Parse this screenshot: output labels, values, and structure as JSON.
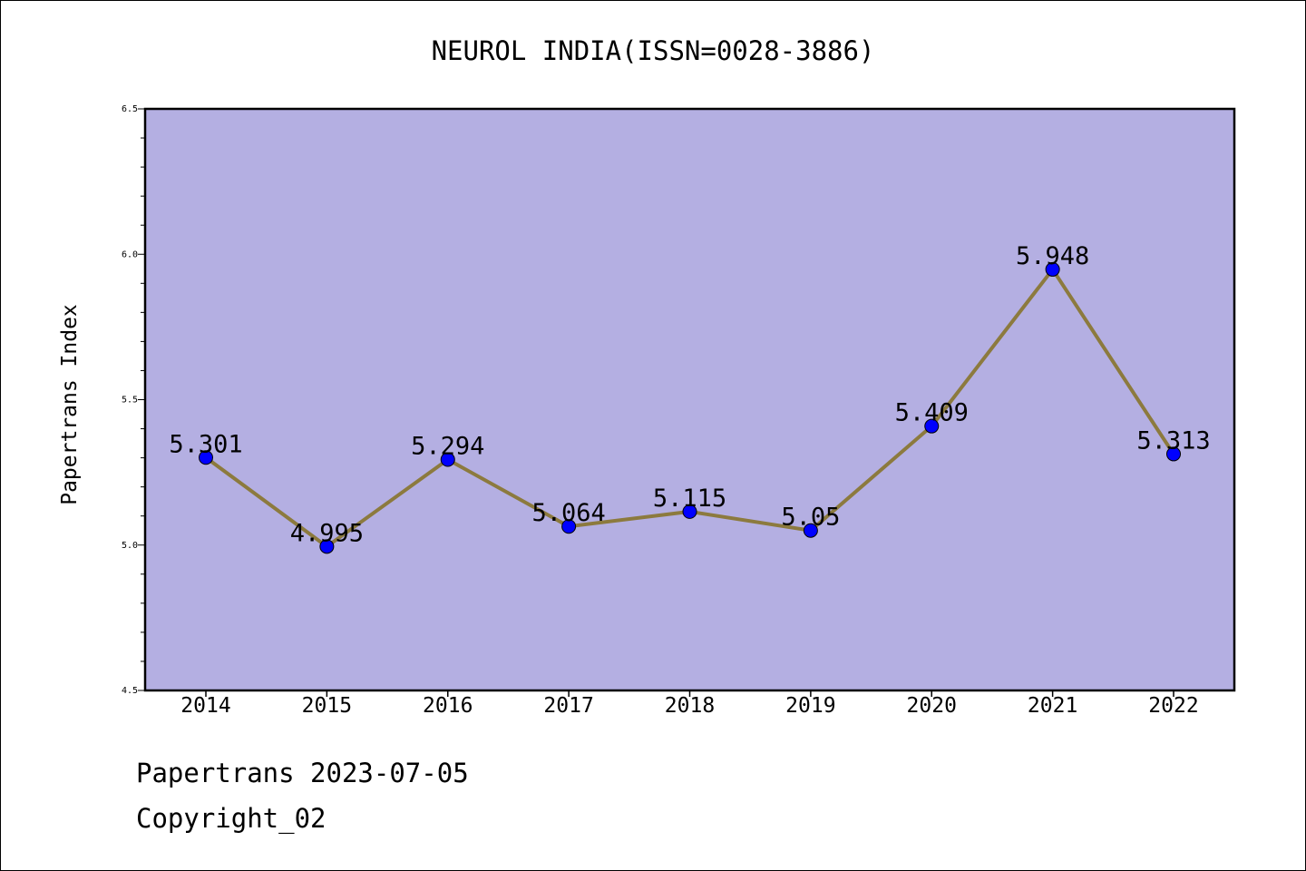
{
  "chart_data": {
    "type": "line",
    "title": "NEUROL INDIA(ISSN=0028-3886)",
    "xlabel": "",
    "ylabel": "Papertrans Index",
    "categories": [
      "2014",
      "2015",
      "2016",
      "2017",
      "2018",
      "2019",
      "2020",
      "2021",
      "2022"
    ],
    "series": [
      {
        "values": [
          5.301,
          4.995,
          5.294,
          5.064,
          5.115,
          5.05,
          5.409,
          5.948,
          5.313
        ],
        "labels": [
          "5.301",
          "4.995",
          "5.294",
          "5.064",
          "5.115",
          "5.05",
          "5.409",
          "5.948",
          "5.313"
        ]
      }
    ],
    "ylim": [
      4.5,
      6.5
    ],
    "yticks": [
      "4.5",
      "5.0",
      "5.5",
      "6.0",
      "6.5"
    ],
    "grid": false,
    "colors": {
      "plot_background": "#b4afe2",
      "line": "#8c7a3e",
      "marker": "#0000ff"
    }
  },
  "footer": {
    "date_text": "Papertrans 2023-07-05",
    "copyright_text": "Copyright_02"
  }
}
